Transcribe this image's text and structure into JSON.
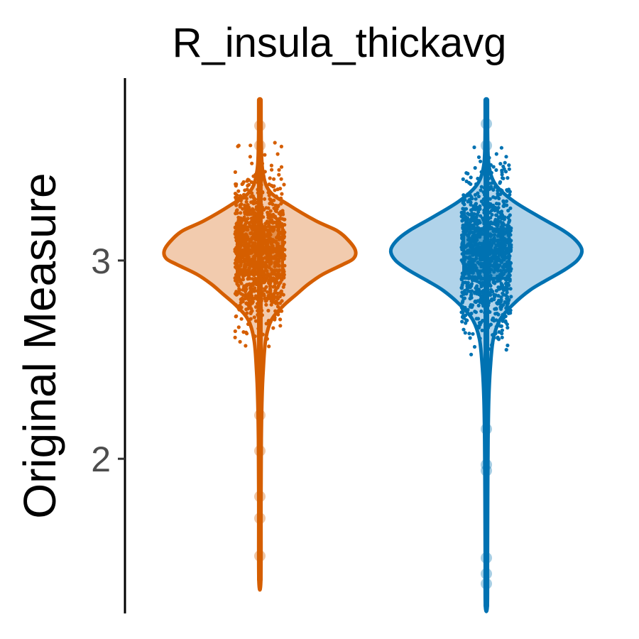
{
  "chart_data": {
    "type": "violin",
    "title": "R_insula_thickavg",
    "xlabel": "",
    "ylabel": "Original Measure",
    "ylim": [
      1.22,
      3.92
    ],
    "y_ticks": [
      2,
      3
    ],
    "y_tick_labels": [
      "2",
      "3"
    ],
    "grid": false,
    "legend": "none",
    "groups": [
      {
        "color": "#D55E00",
        "fill": "#F2CBAE",
        "min": 1.39,
        "q1": 2.93,
        "median": 3.05,
        "q3": 3.17,
        "max": 3.81,
        "density": [
          [
            3.81,
            0.012
          ],
          [
            3.6,
            0.014
          ],
          [
            3.45,
            0.03
          ],
          [
            3.35,
            0.1
          ],
          [
            3.28,
            0.3
          ],
          [
            3.2,
            0.58
          ],
          [
            3.15,
            0.8
          ],
          [
            3.1,
            0.92
          ],
          [
            3.05,
            0.99
          ],
          [
            3.01,
            0.97
          ],
          [
            2.98,
            0.86
          ],
          [
            2.93,
            0.65
          ],
          [
            2.88,
            0.5
          ],
          [
            2.83,
            0.38
          ],
          [
            2.77,
            0.24
          ],
          [
            2.7,
            0.12
          ],
          [
            2.6,
            0.06
          ],
          [
            2.45,
            0.035
          ],
          [
            2.3,
            0.022
          ],
          [
            2.1,
            0.015
          ],
          [
            1.8,
            0.012
          ],
          [
            1.39,
            0.01
          ]
        ],
        "outliers": [
          3.68,
          3.58,
          2.22,
          2.04,
          1.81,
          1.7,
          1.51
        ]
      },
      {
        "color": "#0072B2",
        "fill": "#B0D3EA",
        "min": 1.26,
        "q1": 2.91,
        "median": 3.04,
        "q3": 3.16,
        "max": 3.81,
        "density": [
          [
            3.81,
            0.012
          ],
          [
            3.6,
            0.014
          ],
          [
            3.47,
            0.03
          ],
          [
            3.38,
            0.1
          ],
          [
            3.3,
            0.28
          ],
          [
            3.22,
            0.55
          ],
          [
            3.15,
            0.8
          ],
          [
            3.1,
            0.93
          ],
          [
            3.05,
            0.99
          ],
          [
            3.0,
            0.94
          ],
          [
            2.95,
            0.8
          ],
          [
            2.9,
            0.62
          ],
          [
            2.85,
            0.45
          ],
          [
            2.78,
            0.28
          ],
          [
            2.7,
            0.14
          ],
          [
            2.6,
            0.07
          ],
          [
            2.45,
            0.04
          ],
          [
            2.3,
            0.025
          ],
          [
            2.1,
            0.018
          ],
          [
            1.8,
            0.014
          ],
          [
            1.5,
            0.012
          ],
          [
            1.26,
            0.01
          ]
        ],
        "outliers": [
          3.69,
          3.58,
          2.15,
          1.97,
          1.94,
          1.5,
          1.42,
          1.37
        ]
      }
    ]
  }
}
